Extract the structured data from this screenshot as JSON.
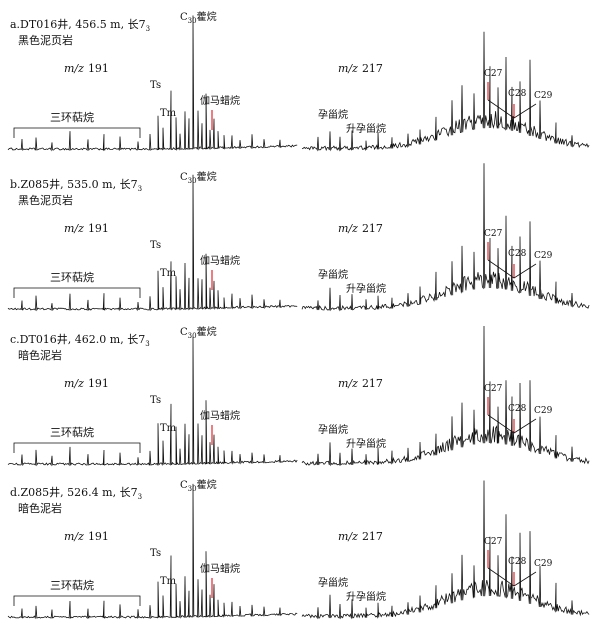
{
  "panels": [
    {
      "id": "a",
      "sample_line1": "a.DT016井, 456.5 m, 长7",
      "sample_sub": "3",
      "sample_line2": "黑色泥页岩",
      "mz191_prefix": "m/z",
      "mz191_value": "191",
      "mz217_prefix": "m/z",
      "mz217_value": "217",
      "tricyclic": "三环萜烷",
      "ts": "Ts",
      "tm": "Tm",
      "c30_prefix": "C",
      "c30_sub": "30",
      "c30_suffix": "藿烷",
      "gammacerane": "伽马蜡烷",
      "pregnane": "孕甾烷",
      "homopregnane": "升孕甾烷",
      "c27": "C27",
      "c28": "C28",
      "c29": "C29"
    },
    {
      "id": "b",
      "sample_line1": "b.Z085井, 535.0 m, 长7",
      "sample_sub": "3",
      "sample_line2": "黑色泥页岩",
      "mz191_prefix": "m/z",
      "mz191_value": "191",
      "mz217_prefix": "m/z",
      "mz217_value": "217",
      "tricyclic": "三环萜烷",
      "ts": "Ts",
      "tm": "Tm",
      "c30_prefix": "C",
      "c30_sub": "30",
      "c30_suffix": "藿烷",
      "gammacerane": "伽马蜡烷",
      "pregnane": "孕甾烷",
      "homopregnane": "升孕甾烷",
      "c27": "C27",
      "c28": "C28",
      "c29": "C29"
    },
    {
      "id": "c",
      "sample_line1": "c.DT016井, 462.0 m, 长7",
      "sample_sub": "3",
      "sample_line2": "暗色泥岩",
      "mz191_prefix": "m/z",
      "mz191_value": "191",
      "mz217_prefix": "m/z",
      "mz217_value": "217",
      "tricyclic": "三环萜烷",
      "ts": "Ts",
      "tm": "Tm",
      "c30_prefix": "C",
      "c30_sub": "30",
      "c30_suffix": "藿烷",
      "gammacerane": "伽马蜡烷",
      "pregnane": "孕甾烷",
      "homopregnane": "升孕甾烷",
      "c27": "C27",
      "c28": "C28",
      "c29": "C29"
    },
    {
      "id": "d",
      "sample_line1": "d.Z085井, 526.4 m, 长7",
      "sample_sub": "3",
      "sample_line2": "暗色泥岩",
      "mz191_prefix": "m/z",
      "mz191_value": "191",
      "mz217_prefix": "m/z",
      "mz217_value": "217",
      "tricyclic": "三环萜烷",
      "ts": "Ts",
      "tm": "Tm",
      "c30_prefix": "C",
      "c30_sub": "30",
      "c30_suffix": "藿烷",
      "gammacerane": "伽马蜡烷",
      "pregnane": "孕甾烷",
      "homopregnane": "升孕甾烷",
      "c27": "C27",
      "c28": "C28",
      "c29": "C29"
    }
  ],
  "colors": {
    "trace": "#111111",
    "marker": "#e3242b",
    "text": "#111111"
  }
}
